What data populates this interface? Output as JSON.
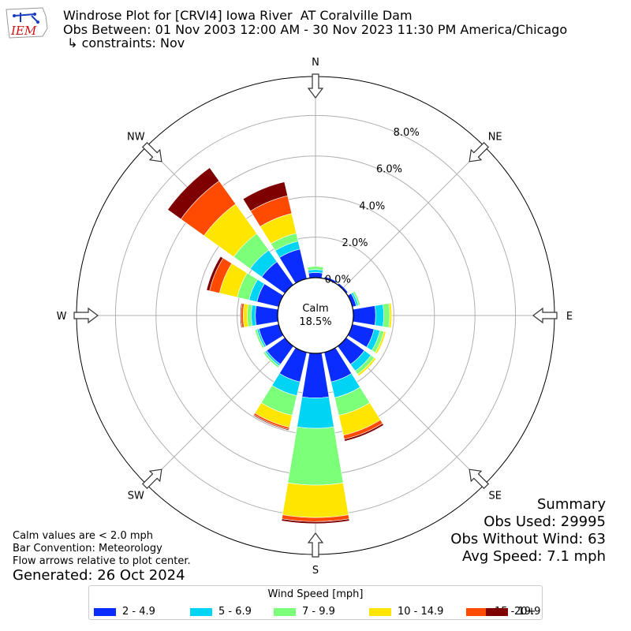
{
  "header": {
    "title_line1": "Windrose Plot for [CRVI4] Iowa River  AT Coralville Dam",
    "title_line2": "Obs Between: 01 Nov 2003 12:00 AM - 30 Nov 2023 11:30 PM America/Chicago",
    "title_line3": " ↳ constraints: Nov",
    "logo_text": "IEM"
  },
  "summary": {
    "heading": "Summary",
    "obs_used": "Obs Used: 29995",
    "obs_without_wind": "Obs Without Wind: 63",
    "avg_speed": "Avg Speed: 7.1 mph"
  },
  "notes": {
    "calm_note": "Calm values are < 2.0 mph",
    "bar_convention": "Bar Convention: Meteorology",
    "flow_arrows": "Flow arrows relative to plot center.",
    "generated": "Generated: 26 Oct 2024"
  },
  "chart_data": {
    "type": "windrose",
    "calm_label": "Calm",
    "calm_value": "18.5%",
    "directions": [
      "N",
      "NNE",
      "NE",
      "ENE",
      "E",
      "ESE",
      "SE",
      "SSE",
      "S",
      "SSW",
      "SW",
      "WSW",
      "W",
      "WNW",
      "NW",
      "NNW"
    ],
    "compass_labels": [
      "N",
      "NE",
      "E",
      "SE",
      "S",
      "SW",
      "W",
      "NW"
    ],
    "radial_ticks": [
      0,
      2,
      4,
      6,
      8
    ],
    "radial_tick_labels": [
      "0.0%",
      "2.0%",
      "4.0%",
      "6.0%",
      "8.0%"
    ],
    "legend_title": "Wind Speed [mph]",
    "colors": {
      "2 - 4.9": "#0b2cff",
      "5 - 6.9": "#00d4f5",
      "7 - 9.9": "#7cff79",
      "10 - 14.9": "#ffe600",
      "15 - 19.9": "#ff4a00",
      "20+": "#7f0000"
    },
    "series": [
      {
        "name": "2 - 4.9",
        "values": [
          0.25,
          0.1,
          0.1,
          0.2,
          1.1,
          1.1,
          1.1,
          1.5,
          2.2,
          1.5,
          1.1,
          1.0,
          1.1,
          1.1,
          1.4,
          1.5
        ]
      },
      {
        "name": "5 - 6.9",
        "values": [
          0.15,
          0.0,
          0.0,
          0.1,
          0.4,
          0.3,
          0.4,
          0.8,
          1.5,
          0.7,
          0.1,
          0.1,
          0.2,
          0.4,
          0.7,
          0.4
        ]
      },
      {
        "name": "7 - 9.9",
        "values": [
          0.15,
          0.0,
          0.0,
          0.1,
          0.3,
          0.2,
          0.2,
          0.9,
          2.8,
          1.0,
          0.1,
          0.1,
          0.2,
          0.6,
          1.0,
          0.4
        ]
      },
      {
        "name": "10 - 14.9",
        "values": [
          0.0,
          0.0,
          0.0,
          0.0,
          0.1,
          0.1,
          0.1,
          1.0,
          1.6,
          0.6,
          0.0,
          0.0,
          0.2,
          0.9,
          1.8,
          1.0
        ]
      },
      {
        "name": "15 - 19.9",
        "values": [
          0.0,
          0.0,
          0.0,
          0.0,
          0.0,
          0.0,
          0.0,
          0.2,
          0.2,
          0.1,
          0.0,
          0.0,
          0.1,
          0.5,
          1.4,
          0.9
        ]
      },
      {
        "name": "20+",
        "values": [
          0.0,
          0.0,
          0.0,
          0.0,
          0.0,
          0.0,
          0.0,
          0.1,
          0.1,
          0.05,
          0.0,
          0.0,
          0.05,
          0.15,
          0.8,
          0.7
        ]
      }
    ]
  }
}
